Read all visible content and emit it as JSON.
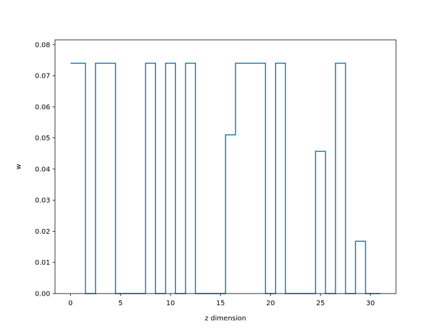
{
  "chart_data": {
    "type": "line",
    "drawstyle": "steps-mid",
    "xlabel": "z dimension",
    "ylabel": "w",
    "xlim": [
      -1.55,
      32.55
    ],
    "ylim": [
      0,
      0.0815
    ],
    "xticks": [
      0,
      5,
      10,
      15,
      20,
      25,
      30
    ],
    "yticks": [
      0.0,
      0.01,
      0.02,
      0.03,
      0.04,
      0.05,
      0.06,
      0.07,
      0.08
    ],
    "ytick_labels": [
      "0.00",
      "0.01",
      "0.02",
      "0.03",
      "0.04",
      "0.05",
      "0.06",
      "0.07",
      "0.08"
    ],
    "grid": false,
    "line_color": "#1f77b4",
    "series": [
      {
        "x": [
          0,
          1,
          2,
          3,
          4,
          5,
          6,
          7,
          8,
          9,
          10,
          11,
          12,
          13,
          14,
          15,
          16,
          17,
          18,
          19,
          20,
          21,
          22,
          23,
          24,
          25,
          26,
          27,
          28,
          29,
          30,
          31
        ],
        "values": [
          0.074,
          0.074,
          0,
          0.074,
          0.074,
          0,
          0,
          0,
          0.074,
          0,
          0.074,
          0,
          0.074,
          0,
          0,
          0,
          0.051,
          0.074,
          0.074,
          0.074,
          0,
          0.074,
          0,
          0,
          0,
          0.0457,
          0,
          0.074,
          0,
          0.0168,
          0,
          0
        ]
      }
    ]
  }
}
